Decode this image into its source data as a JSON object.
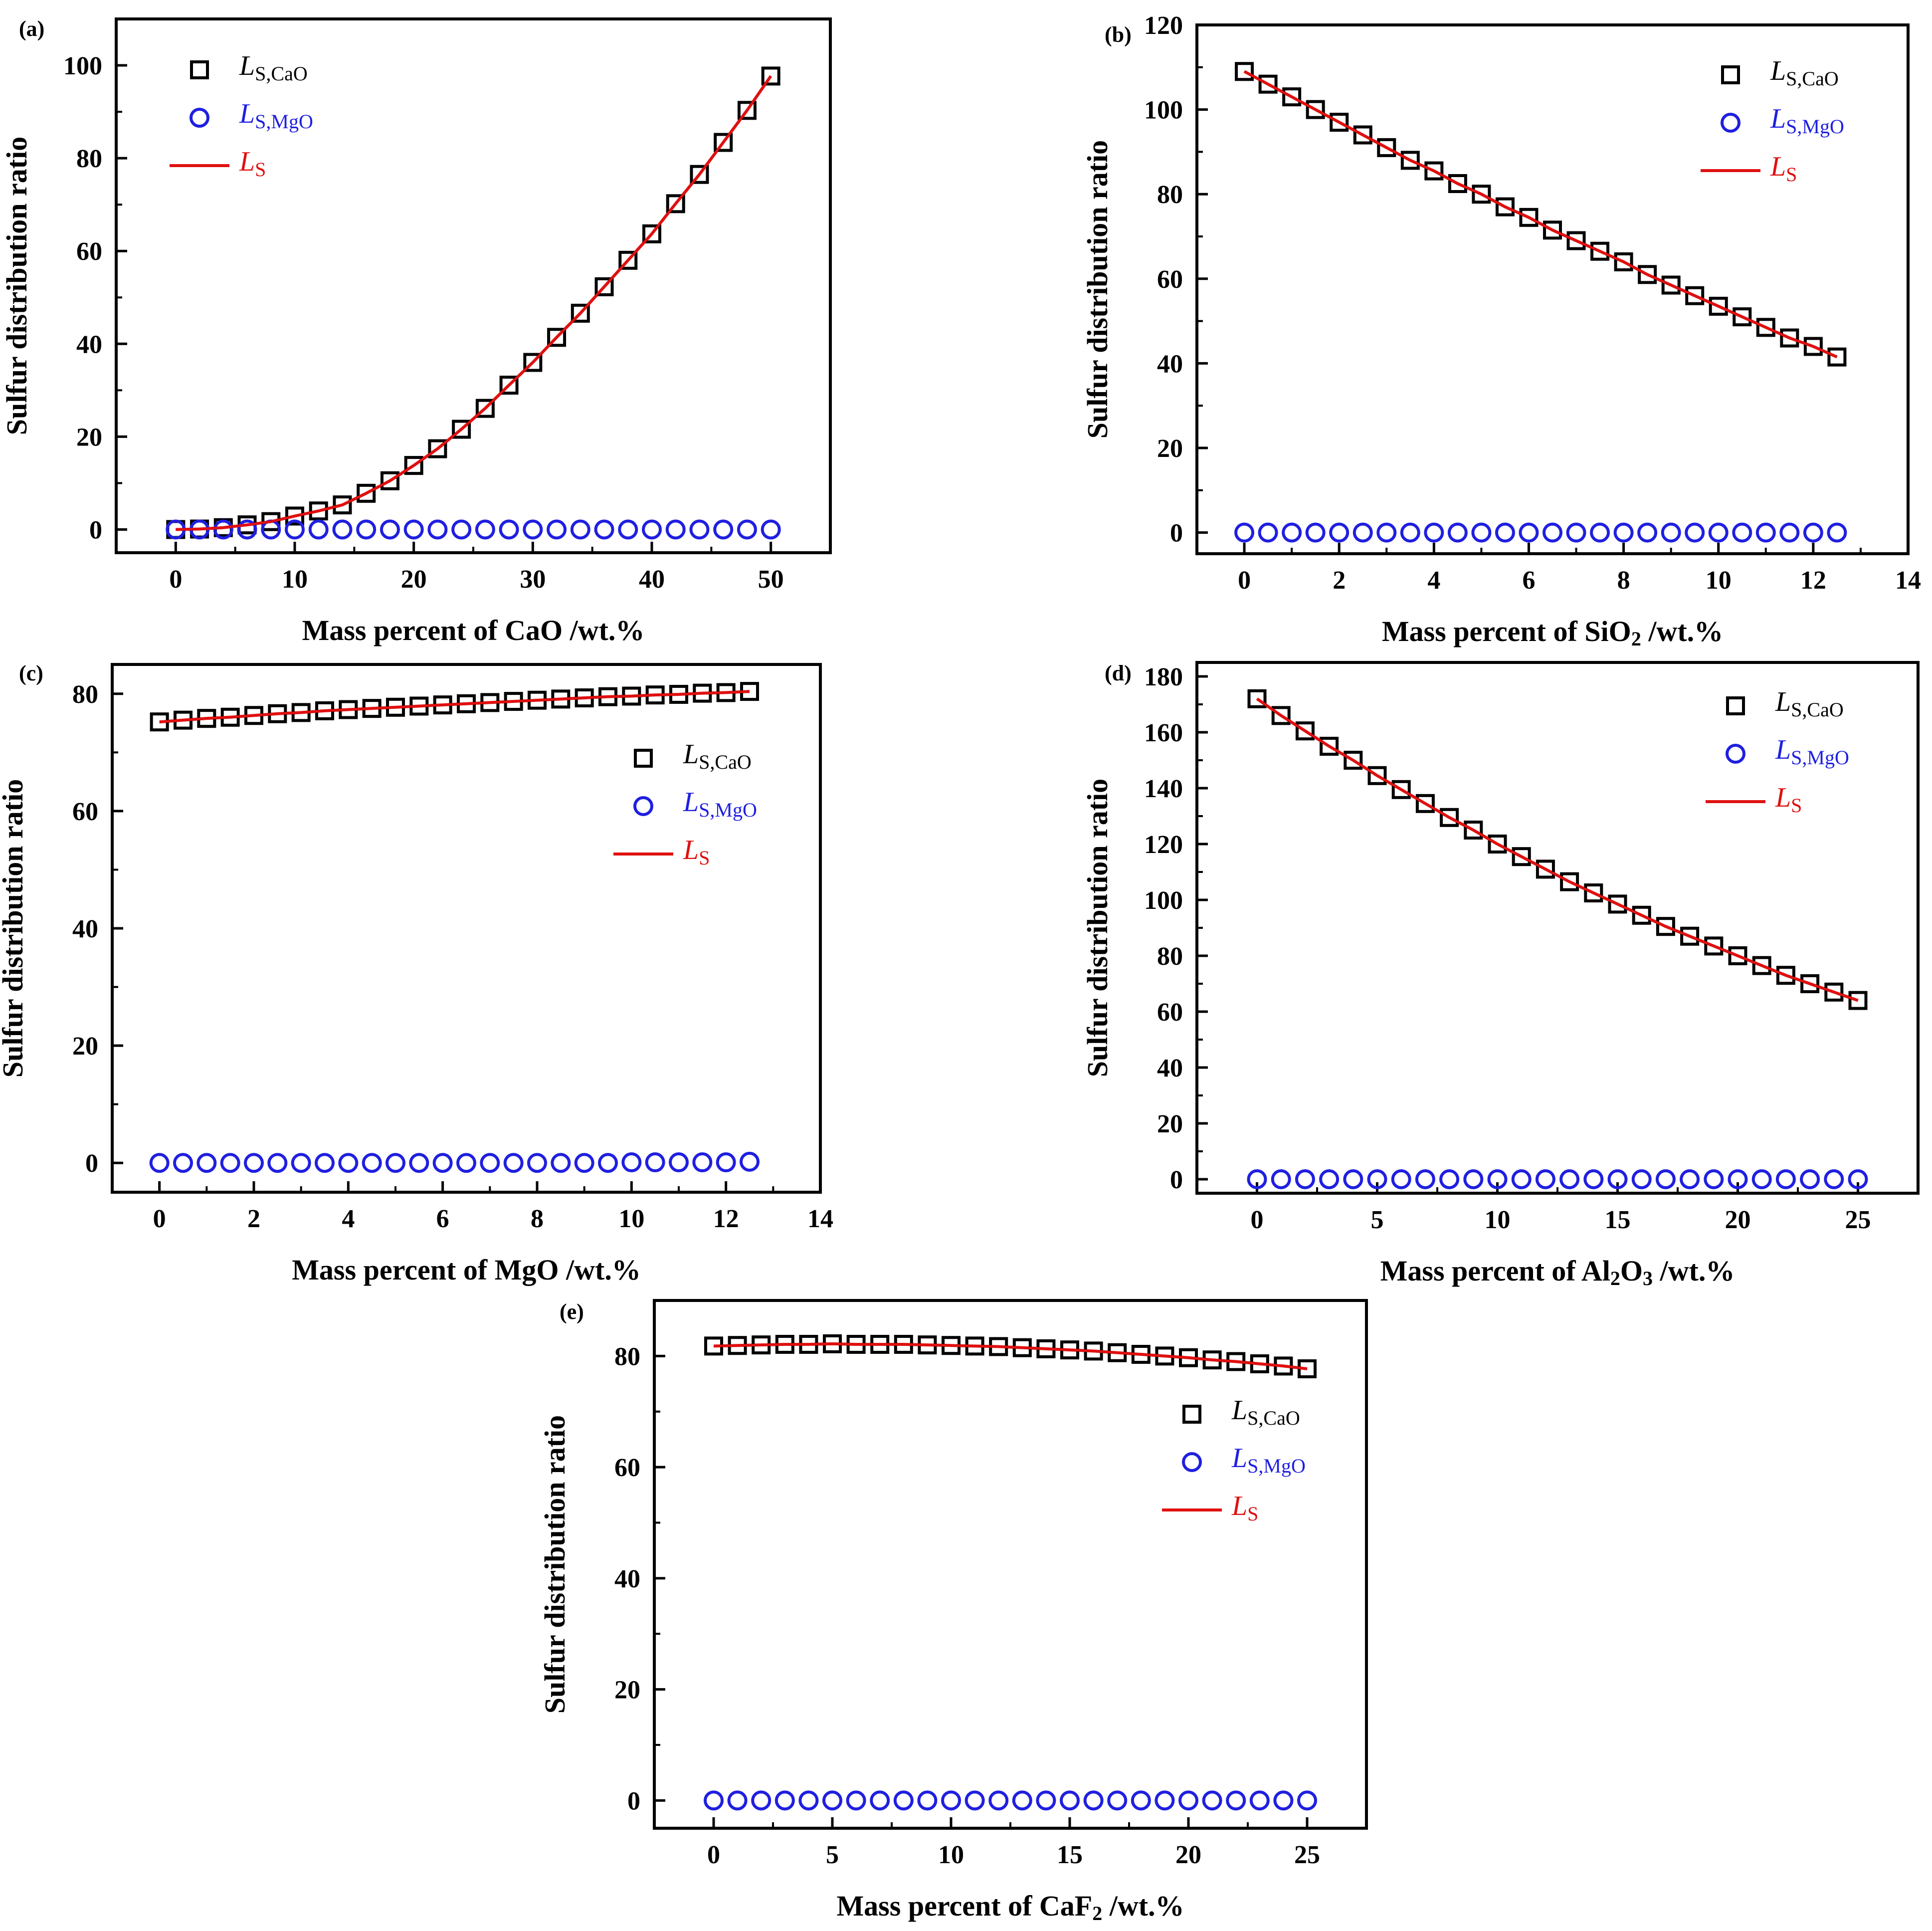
{
  "chart_data": [
    {
      "type": "scatter",
      "panel_label": "(a)",
      "xlabel": [
        {
          "t": "Mass percent of CaO /wt.%"
        }
      ],
      "ylabel": "Sulfur distribution ratio",
      "xlim": [
        -5,
        55
      ],
      "ylim": [
        -5,
        110
      ],
      "xticks": [
        0,
        10,
        20,
        30,
        40,
        50
      ],
      "yticks": [
        0,
        20,
        40,
        60,
        80,
        100
      ],
      "legend_position": "top-left",
      "series": [
        {
          "name": "LS,CaO",
          "marker": "square",
          "color": "#000000",
          "x": [
            0,
            2,
            4,
            6,
            8,
            10,
            12,
            14,
            16,
            18,
            20,
            22,
            24,
            26,
            28,
            30,
            32,
            34,
            36,
            38,
            40,
            42,
            44,
            46,
            48,
            50
          ],
          "y": [
            0,
            0.1,
            0.4,
            1,
            1.7,
            2.9,
            4,
            5.3,
            7.8,
            10.5,
            13.8,
            17.4,
            21.6,
            26.1,
            31.1,
            36,
            41.4,
            46.6,
            52.3,
            58,
            63.7,
            70.2,
            76.5,
            83.4,
            90.3,
            97.7
          ]
        },
        {
          "name": "LS,MgO",
          "marker": "circle",
          "color": "#1f1fe0",
          "x": [
            0,
            2,
            4,
            6,
            8,
            10,
            12,
            14,
            16,
            18,
            20,
            22,
            24,
            26,
            28,
            30,
            32,
            34,
            36,
            38,
            40,
            42,
            44,
            46,
            48,
            50
          ],
          "y": [
            0,
            0,
            0,
            0,
            0,
            0,
            0,
            0,
            0,
            0,
            0,
            0,
            0,
            0,
            0,
            0,
            0,
            0,
            0,
            0,
            0,
            0,
            0,
            0,
            0,
            0
          ]
        },
        {
          "name": "LS",
          "marker": "line",
          "color": "#e01010",
          "x": [
            0,
            2,
            4,
            6,
            8,
            10,
            12,
            14,
            16,
            18,
            20,
            22,
            24,
            26,
            28,
            30,
            32,
            34,
            36,
            38,
            40,
            42,
            44,
            46,
            48,
            50
          ],
          "y": [
            0,
            0.1,
            0.4,
            1,
            1.7,
            2.9,
            4,
            5.3,
            7.8,
            10.5,
            13.8,
            17.4,
            21.6,
            26.1,
            31.1,
            36,
            41.4,
            46.6,
            52.3,
            58,
            63.7,
            70.2,
            76.5,
            83.4,
            90.3,
            97.7
          ]
        }
      ]
    },
    {
      "type": "scatter",
      "panel_label": "(b)",
      "xlabel": [
        {
          "t": "Mass percent of SiO"
        },
        {
          "t": "2",
          "sub": true
        },
        {
          "t": " /wt.%"
        }
      ],
      "ylabel": "Sulfur distribution ratio",
      "xlim": [
        -1,
        14
      ],
      "ylim": [
        -5,
        120
      ],
      "xticks": [
        0,
        2,
        4,
        6,
        8,
        10,
        12,
        14
      ],
      "yticks": [
        0,
        20,
        40,
        60,
        80,
        100,
        120
      ],
      "legend_position": "top-right",
      "series": [
        {
          "name": "LS,CaO",
          "marker": "square",
          "color": "#000000",
          "x": [
            0,
            0.5,
            1,
            1.5,
            2,
            2.5,
            3,
            3.5,
            4,
            4.5,
            5,
            5.5,
            6,
            6.5,
            7,
            7.5,
            8,
            8.5,
            9,
            9.5,
            10,
            10.5,
            11,
            11.5,
            12,
            12.5
          ],
          "y": [
            109,
            106,
            103,
            100,
            97,
            94,
            91,
            88,
            85.5,
            82.5,
            80,
            77,
            74.5,
            71.5,
            69,
            66.5,
            64,
            61,
            58.5,
            56,
            53.5,
            51,
            48.5,
            46,
            44,
            41.5
          ]
        },
        {
          "name": "LS,MgO",
          "marker": "circle",
          "color": "#1f1fe0",
          "x": [
            0,
            0.5,
            1,
            1.5,
            2,
            2.5,
            3,
            3.5,
            4,
            4.5,
            5,
            5.5,
            6,
            6.5,
            7,
            7.5,
            8,
            8.5,
            9,
            9.5,
            10,
            10.5,
            11,
            11.5,
            12,
            12.5
          ],
          "y": [
            0,
            0,
            0,
            0,
            0,
            0,
            0,
            0,
            0,
            0,
            0,
            0,
            0,
            0,
            0,
            0,
            0,
            0,
            0,
            0,
            0,
            0,
            0,
            0,
            0,
            0
          ]
        },
        {
          "name": "LS",
          "marker": "line",
          "color": "#e01010",
          "x": [
            0,
            0.5,
            1,
            1.5,
            2,
            2.5,
            3,
            3.5,
            4,
            4.5,
            5,
            5.5,
            6,
            6.5,
            7,
            7.5,
            8,
            8.5,
            9,
            9.5,
            10,
            10.5,
            11,
            11.5,
            12,
            12.5
          ],
          "y": [
            109,
            106,
            103,
            100,
            97,
            94,
            91,
            88,
            85.5,
            82.5,
            80,
            77,
            74.5,
            71.5,
            69,
            66.5,
            64,
            61,
            58.5,
            56,
            53.5,
            51,
            48.5,
            46,
            44,
            41.5
          ]
        }
      ]
    },
    {
      "type": "scatter",
      "panel_label": "(c)",
      "xlabel": [
        {
          "t": "Mass percent of MgO /wt.%"
        }
      ],
      "ylabel": "Sulfur distribution ratio",
      "xlim": [
        -1,
        14
      ],
      "ylim": [
        -5,
        85
      ],
      "xticks": [
        0,
        2,
        4,
        6,
        8,
        10,
        12,
        14
      ],
      "yticks": [
        0,
        20,
        40,
        60,
        80
      ],
      "legend_position": "top-right",
      "series": [
        {
          "name": "LS,CaO",
          "marker": "square",
          "color": "#000000",
          "x": [
            0,
            0.5,
            1,
            1.5,
            2,
            2.5,
            3,
            3.5,
            4,
            4.5,
            5,
            5.5,
            6,
            6.5,
            7,
            7.5,
            8,
            8.5,
            9,
            9.5,
            10,
            10.5,
            11,
            11.5,
            12,
            12.5
          ],
          "y": [
            75.2,
            75.5,
            75.8,
            76,
            76.3,
            76.6,
            76.8,
            77.1,
            77.3,
            77.5,
            77.7,
            77.9,
            78.1,
            78.3,
            78.5,
            78.7,
            78.9,
            79.1,
            79.3,
            79.5,
            79.6,
            79.8,
            79.9,
            80.1,
            80.2,
            80.4
          ]
        },
        {
          "name": "LS,MgO",
          "marker": "circle",
          "color": "#1f1fe0",
          "x": [
            0,
            0.5,
            1,
            1.5,
            2,
            2.5,
            3,
            3.5,
            4,
            4.5,
            5,
            5.5,
            6,
            6.5,
            7,
            7.5,
            8,
            8.5,
            9,
            9.5,
            10,
            10.5,
            11,
            11.5,
            12,
            12.5
          ],
          "y": [
            0,
            0,
            0,
            0,
            0,
            0,
            0,
            0,
            0,
            0,
            0,
            0,
            0,
            0,
            0,
            0,
            0,
            0,
            0,
            0,
            0.1,
            0.1,
            0.1,
            0.1,
            0.1,
            0.2
          ]
        },
        {
          "name": "LS",
          "marker": "line",
          "color": "#e01010",
          "x": [
            0,
            0.5,
            1,
            1.5,
            2,
            2.5,
            3,
            3.5,
            4,
            4.5,
            5,
            5.5,
            6,
            6.5,
            7,
            7.5,
            8,
            8.5,
            9,
            9.5,
            10,
            10.5,
            11,
            11.5,
            12,
            12.5
          ],
          "y": [
            75.2,
            75.5,
            75.8,
            76,
            76.3,
            76.6,
            76.8,
            77.1,
            77.3,
            77.5,
            77.7,
            77.9,
            78.1,
            78.3,
            78.5,
            78.7,
            78.9,
            79.1,
            79.3,
            79.5,
            79.6,
            79.8,
            79.9,
            80.1,
            80.2,
            80.4
          ]
        }
      ]
    },
    {
      "type": "scatter",
      "panel_label": "(d)",
      "xlabel": [
        {
          "t": "Mass percent of Al"
        },
        {
          "t": "2",
          "sub": true
        },
        {
          "t": "O"
        },
        {
          "t": "3",
          "sub": true
        },
        {
          "t": " /wt.%"
        }
      ],
      "ylabel": "Sulfur distribution ratio",
      "xlim": [
        -2.5,
        27.5
      ],
      "ylim": [
        -5,
        185
      ],
      "xticks": [
        0,
        5,
        10,
        15,
        20,
        25
      ],
      "yticks": [
        0,
        20,
        40,
        60,
        80,
        100,
        120,
        140,
        160,
        180
      ],
      "legend_position": "top-right",
      "series": [
        {
          "name": "LS,CaO",
          "marker": "square",
          "color": "#000000",
          "x": [
            0,
            1,
            2,
            3,
            4,
            5,
            6,
            7,
            8,
            9,
            10,
            11,
            12,
            13,
            14,
            15,
            16,
            17,
            18,
            19,
            20,
            21,
            22,
            23,
            24,
            25
          ],
          "y": [
            172,
            166,
            160.5,
            155,
            150,
            144.5,
            139.5,
            134.5,
            129.5,
            125,
            120,
            115.5,
            111,
            106.5,
            102.5,
            98.5,
            94.5,
            90.5,
            87,
            83.5,
            80,
            76.5,
            73,
            70,
            67,
            64
          ]
        },
        {
          "name": "LS,MgO",
          "marker": "circle",
          "color": "#1f1fe0",
          "x": [
            0,
            1,
            2,
            3,
            4,
            5,
            6,
            7,
            8,
            9,
            10,
            11,
            12,
            13,
            14,
            15,
            16,
            17,
            18,
            19,
            20,
            21,
            22,
            23,
            24,
            25
          ],
          "y": [
            0,
            0,
            0,
            0,
            0,
            0,
            0,
            0,
            0,
            0,
            0,
            0,
            0,
            0,
            0,
            0,
            0,
            0,
            0,
            0,
            0,
            0,
            0,
            0,
            0,
            0
          ]
        },
        {
          "name": "LS",
          "marker": "line",
          "color": "#e01010",
          "x": [
            0,
            1,
            2,
            3,
            4,
            5,
            6,
            7,
            8,
            9,
            10,
            11,
            12,
            13,
            14,
            15,
            16,
            17,
            18,
            19,
            20,
            21,
            22,
            23,
            24,
            25
          ],
          "y": [
            172,
            166,
            160.5,
            155,
            150,
            144.5,
            139.5,
            134.5,
            129.5,
            125,
            120,
            115.5,
            111,
            106.5,
            102.5,
            98.5,
            94.5,
            90.5,
            87,
            83.5,
            80,
            76.5,
            73,
            70,
            67,
            64
          ]
        }
      ]
    },
    {
      "type": "scatter",
      "panel_label": "(e)",
      "xlabel": [
        {
          "t": "Mass percent of CaF"
        },
        {
          "t": "2",
          "sub": true
        },
        {
          "t": " /wt.%"
        }
      ],
      "ylabel": "Sulfur distribution ratio",
      "xlim": [
        -2.5,
        27.5
      ],
      "ylim": [
        -5,
        90
      ],
      "xticks": [
        0,
        5,
        10,
        15,
        20,
        25
      ],
      "yticks": [
        0,
        20,
        40,
        60,
        80
      ],
      "legend_position": "top-right",
      "series": [
        {
          "name": "LS,CaO",
          "marker": "square",
          "color": "#000000",
          "x": [
            0,
            1,
            2,
            3,
            4,
            5,
            6,
            7,
            8,
            9,
            10,
            11,
            12,
            13,
            14,
            15,
            16,
            17,
            18,
            19,
            20,
            21,
            22,
            23,
            24,
            25
          ],
          "y": [
            81.8,
            81.9,
            82,
            82.1,
            82.1,
            82.2,
            82.1,
            82.1,
            82.1,
            82,
            81.9,
            81.8,
            81.7,
            81.5,
            81.3,
            81.1,
            80.9,
            80.6,
            80.3,
            80,
            79.7,
            79.3,
            79,
            78.6,
            78.2,
            77.7
          ]
        },
        {
          "name": "LS,MgO",
          "marker": "circle",
          "color": "#1f1fe0",
          "x": [
            0,
            1,
            2,
            3,
            4,
            5,
            6,
            7,
            8,
            9,
            10,
            11,
            12,
            13,
            14,
            15,
            16,
            17,
            18,
            19,
            20,
            21,
            22,
            23,
            24,
            25
          ],
          "y": [
            0,
            0,
            0,
            0,
            0,
            0,
            0,
            0,
            0,
            0,
            0,
            0,
            0,
            0,
            0,
            0,
            0,
            0,
            0,
            0,
            0,
            0,
            0,
            0,
            0,
            0
          ]
        },
        {
          "name": "LS",
          "marker": "line",
          "color": "#e01010",
          "x": [
            0,
            1,
            2,
            3,
            4,
            5,
            6,
            7,
            8,
            9,
            10,
            11,
            12,
            13,
            14,
            15,
            16,
            17,
            18,
            19,
            20,
            21,
            22,
            23,
            24,
            25
          ],
          "y": [
            81.8,
            81.9,
            82,
            82.1,
            82.1,
            82.2,
            82.1,
            82.1,
            82.1,
            82,
            81.9,
            81.8,
            81.7,
            81.5,
            81.3,
            81.1,
            80.9,
            80.6,
            80.3,
            80,
            79.7,
            79.3,
            79,
            78.6,
            78.2,
            77.7
          ]
        }
      ]
    }
  ]
}
